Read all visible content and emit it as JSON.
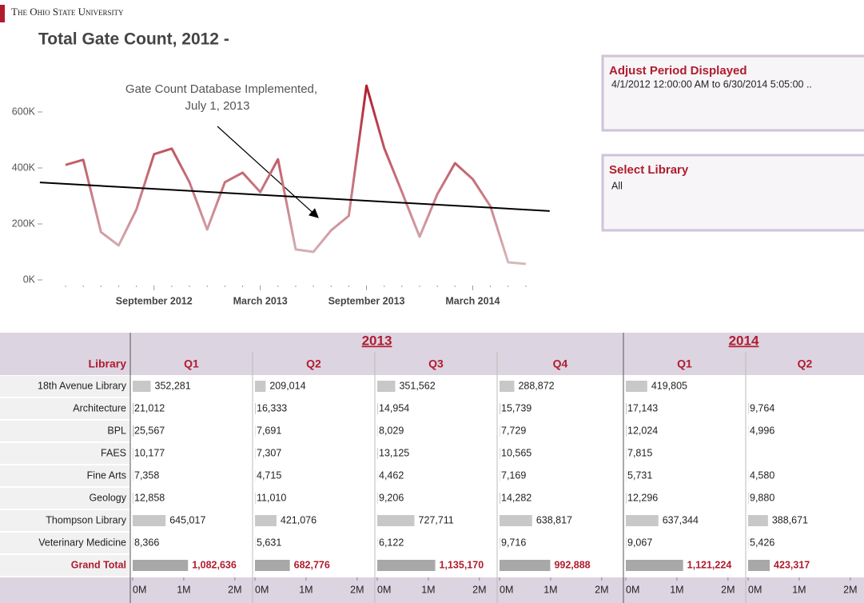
{
  "header": {
    "university": "The Ohio State University"
  },
  "chart_data": {
    "type": "line",
    "title": "Total Gate  Count, 2012 -",
    "categories": [
      null,
      null,
      null,
      null,
      null,
      "September 2012",
      null,
      null,
      null,
      null,
      null,
      "March 2013",
      null,
      null,
      null,
      null,
      null,
      "September 2013",
      null,
      null,
      null,
      null,
      null,
      "March 2014",
      null,
      null,
      null
    ],
    "values": [
      411000,
      429000,
      171000,
      123000,
      251000,
      449000,
      469000,
      349000,
      180000,
      349000,
      383000,
      314000,
      431000,
      109000,
      100000,
      177000,
      229000,
      694000,
      471000,
      314000,
      154000,
      306000,
      417000,
      360000,
      263000,
      63000,
      57000
    ],
    "color": "#b01c2e",
    "low_color": "#dcc6c8",
    "ylim": [
      0,
      700000
    ],
    "yticks": [
      {
        "value": 0,
        "label": "0K"
      },
      {
        "value": 200000,
        "label": "200K"
      },
      {
        "value": 400000,
        "label": "400K"
      },
      {
        "value": 600000,
        "label": "600K"
      }
    ],
    "trend_line": {
      "values": [
        343000,
        251000
      ],
      "color": "#000000"
    },
    "annotation": [
      "Gate Count Database Implemented,",
      "July 1, 2013"
    ]
  },
  "filters": [
    {
      "title": "Adjust Period Displayed",
      "value": "4/1/2012 12:00:00 AM to 6/30/2014 5:05:00 .."
    },
    {
      "title": "Select Library",
      "value": "All"
    }
  ],
  "table": {
    "row_header": "Library",
    "columns": [
      {
        "year": "2013",
        "quarter": "Q1"
      },
      {
        "year": "2013",
        "quarter": "Q2"
      },
      {
        "year": "2013",
        "quarter": "Q3"
      },
      {
        "year": "2013",
        "quarter": "Q4"
      },
      {
        "year": "2014",
        "quarter": "Q1"
      },
      {
        "year": "2014",
        "quarter": "Q2"
      }
    ],
    "rows": [
      {
        "label": "18th Avenue Library",
        "values": [
          352281,
          209014,
          351562,
          288872,
          419805,
          null
        ],
        "value_labels": [
          "352,281",
          "209,014",
          "351,562",
          "288,872",
          "419,805",
          null
        ]
      },
      {
        "label": "Architecture",
        "values": [
          21012,
          16333,
          14954,
          15739,
          17143,
          9764
        ],
        "value_labels": [
          "21,012",
          "16,333",
          "14,954",
          "15,739",
          "17,143",
          "9,764"
        ]
      },
      {
        "label": "BPL",
        "values": [
          25567,
          7691,
          8029,
          7729,
          12024,
          4996
        ],
        "value_labels": [
          "25,567",
          "7,691",
          "8,029",
          "7,729",
          "12,024",
          "4,996"
        ]
      },
      {
        "label": "FAES",
        "values": [
          10177,
          7307,
          13125,
          10565,
          7815,
          null
        ],
        "value_labels": [
          "10,177",
          "7,307",
          "13,125",
          "10,565",
          "7,815",
          null
        ]
      },
      {
        "label": "Fine Arts",
        "values": [
          7358,
          4715,
          4462,
          7169,
          5731,
          4580
        ],
        "value_labels": [
          "7,358",
          "4,715",
          "4,462",
          "7,169",
          "5,731",
          "4,580"
        ]
      },
      {
        "label": "Geology",
        "values": [
          12858,
          11010,
          9206,
          14282,
          12296,
          9880
        ],
        "value_labels": [
          "12,858",
          "11,010",
          "9,206",
          "14,282",
          "12,296",
          "9,880"
        ]
      },
      {
        "label": "Thompson Library",
        "values": [
          645017,
          421076,
          727711,
          638817,
          637344,
          388671
        ],
        "value_labels": [
          "645,017",
          "421,076",
          "727,711",
          "638,817",
          "637,344",
          "388,671"
        ]
      },
      {
        "label": "Veterinary Medicine",
        "values": [
          8366,
          5631,
          6122,
          9716,
          9067,
          5426
        ],
        "value_labels": [
          "8,366",
          "5,631",
          "6,122",
          "9,716",
          "9,067",
          "5,426"
        ]
      },
      {
        "label": "Grand Total",
        "values": [
          1082636,
          682776,
          1135170,
          992888,
          1121224,
          423317
        ],
        "value_labels": [
          "1,082,636",
          "682,776",
          "1,135,170",
          "992,888",
          "1,121,224",
          "423,317"
        ]
      }
    ],
    "bar_color": "#c8c8c8",
    "total_bar_color": "#a8a8a8",
    "xlim": [
      0,
      2300000
    ],
    "xticks": [
      {
        "value": 0,
        "label": "0M"
      },
      {
        "value": 1000000,
        "label": "1M"
      },
      {
        "value": 2000000,
        "label": "2M"
      }
    ]
  }
}
